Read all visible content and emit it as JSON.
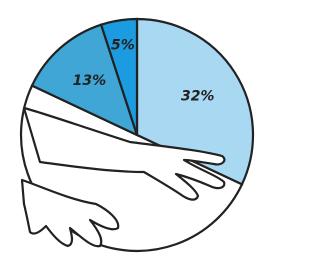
{
  "chart_data": {
    "type": "pie",
    "values": [
      32,
      50,
      13,
      5
    ],
    "value_labels": [
      "32%",
      null,
      "13%",
      "5%"
    ],
    "colors": [
      "#a9d9f2",
      "#ffffff",
      "#3fa6d6",
      "#1b9be0"
    ]
  }
}
